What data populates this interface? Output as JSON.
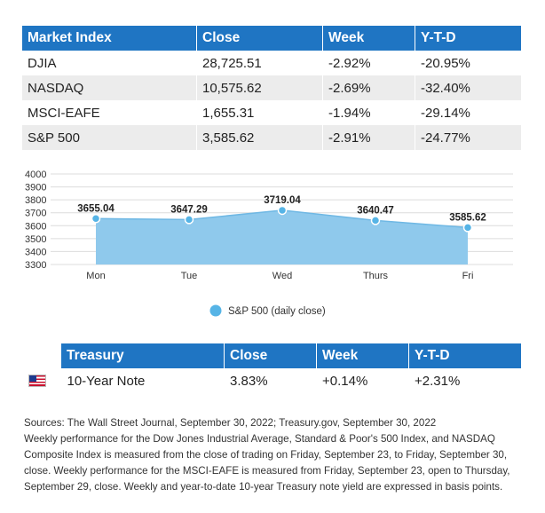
{
  "market_table": {
    "headers": [
      "Market Index",
      "Close",
      "Week",
      "Y-T-D"
    ],
    "rows": [
      {
        "index": "DJIA",
        "close": "28,725.51",
        "week": "-2.92%",
        "ytd": "-20.95%"
      },
      {
        "index": "NASDAQ",
        "close": "10,575.62",
        "week": "-2.69%",
        "ytd": "-32.40%"
      },
      {
        "index": "MSCI-EAFE",
        "close": "1,655.31",
        "week": "-1.94%",
        "ytd": "-29.14%"
      },
      {
        "index": "S&P 500",
        "close": "3,585.62",
        "week": "-2.91%",
        "ytd": "-24.77%"
      }
    ]
  },
  "chart_data": {
    "type": "area",
    "categories": [
      "Mon",
      "Tue",
      "Wed",
      "Thurs",
      "Fri"
    ],
    "series": [
      {
        "name": "S&P 500 (daily close)",
        "values": [
          3655.04,
          3647.29,
          3719.04,
          3640.47,
          3585.62
        ],
        "labels": [
          "3655.04",
          "3647.29",
          "3719.04",
          "3640.47",
          "3585.62"
        ]
      }
    ],
    "yticks": [
      4000,
      3900,
      3800,
      3700,
      3600,
      3500,
      3400,
      3300
    ],
    "ylim": [
      3300,
      4000
    ],
    "grid": true,
    "legend_position": "bottom-center",
    "color": "#8fc9ec",
    "marker_color": "#56b4e6"
  },
  "treasury_table": {
    "headers": [
      "",
      "Treasury",
      "Close",
      "Week",
      "Y-T-D"
    ],
    "flag_icon": "us-flag-icon",
    "row": {
      "name": "10-Year Note",
      "close": "3.83%",
      "week": "+0.14%",
      "ytd": "+2.31%"
    }
  },
  "footnotes": {
    "sources": "Sources: The Wall Street Journal, September 30, 2022; Treasury.gov, September 30, 2022",
    "note": "Weekly performance for the Dow Jones Industrial Average, Standard & Poor's 500 Index, and NASDAQ Composite Index is measured from the close of trading on Friday, September 23, to Friday, September 30, close. Weekly performance for the MSCI-EAFE is measured from Friday, September 23, open to Thursday, September 29, close. Weekly and year-to-date 10-year Treasury note yield are expressed in basis points."
  }
}
